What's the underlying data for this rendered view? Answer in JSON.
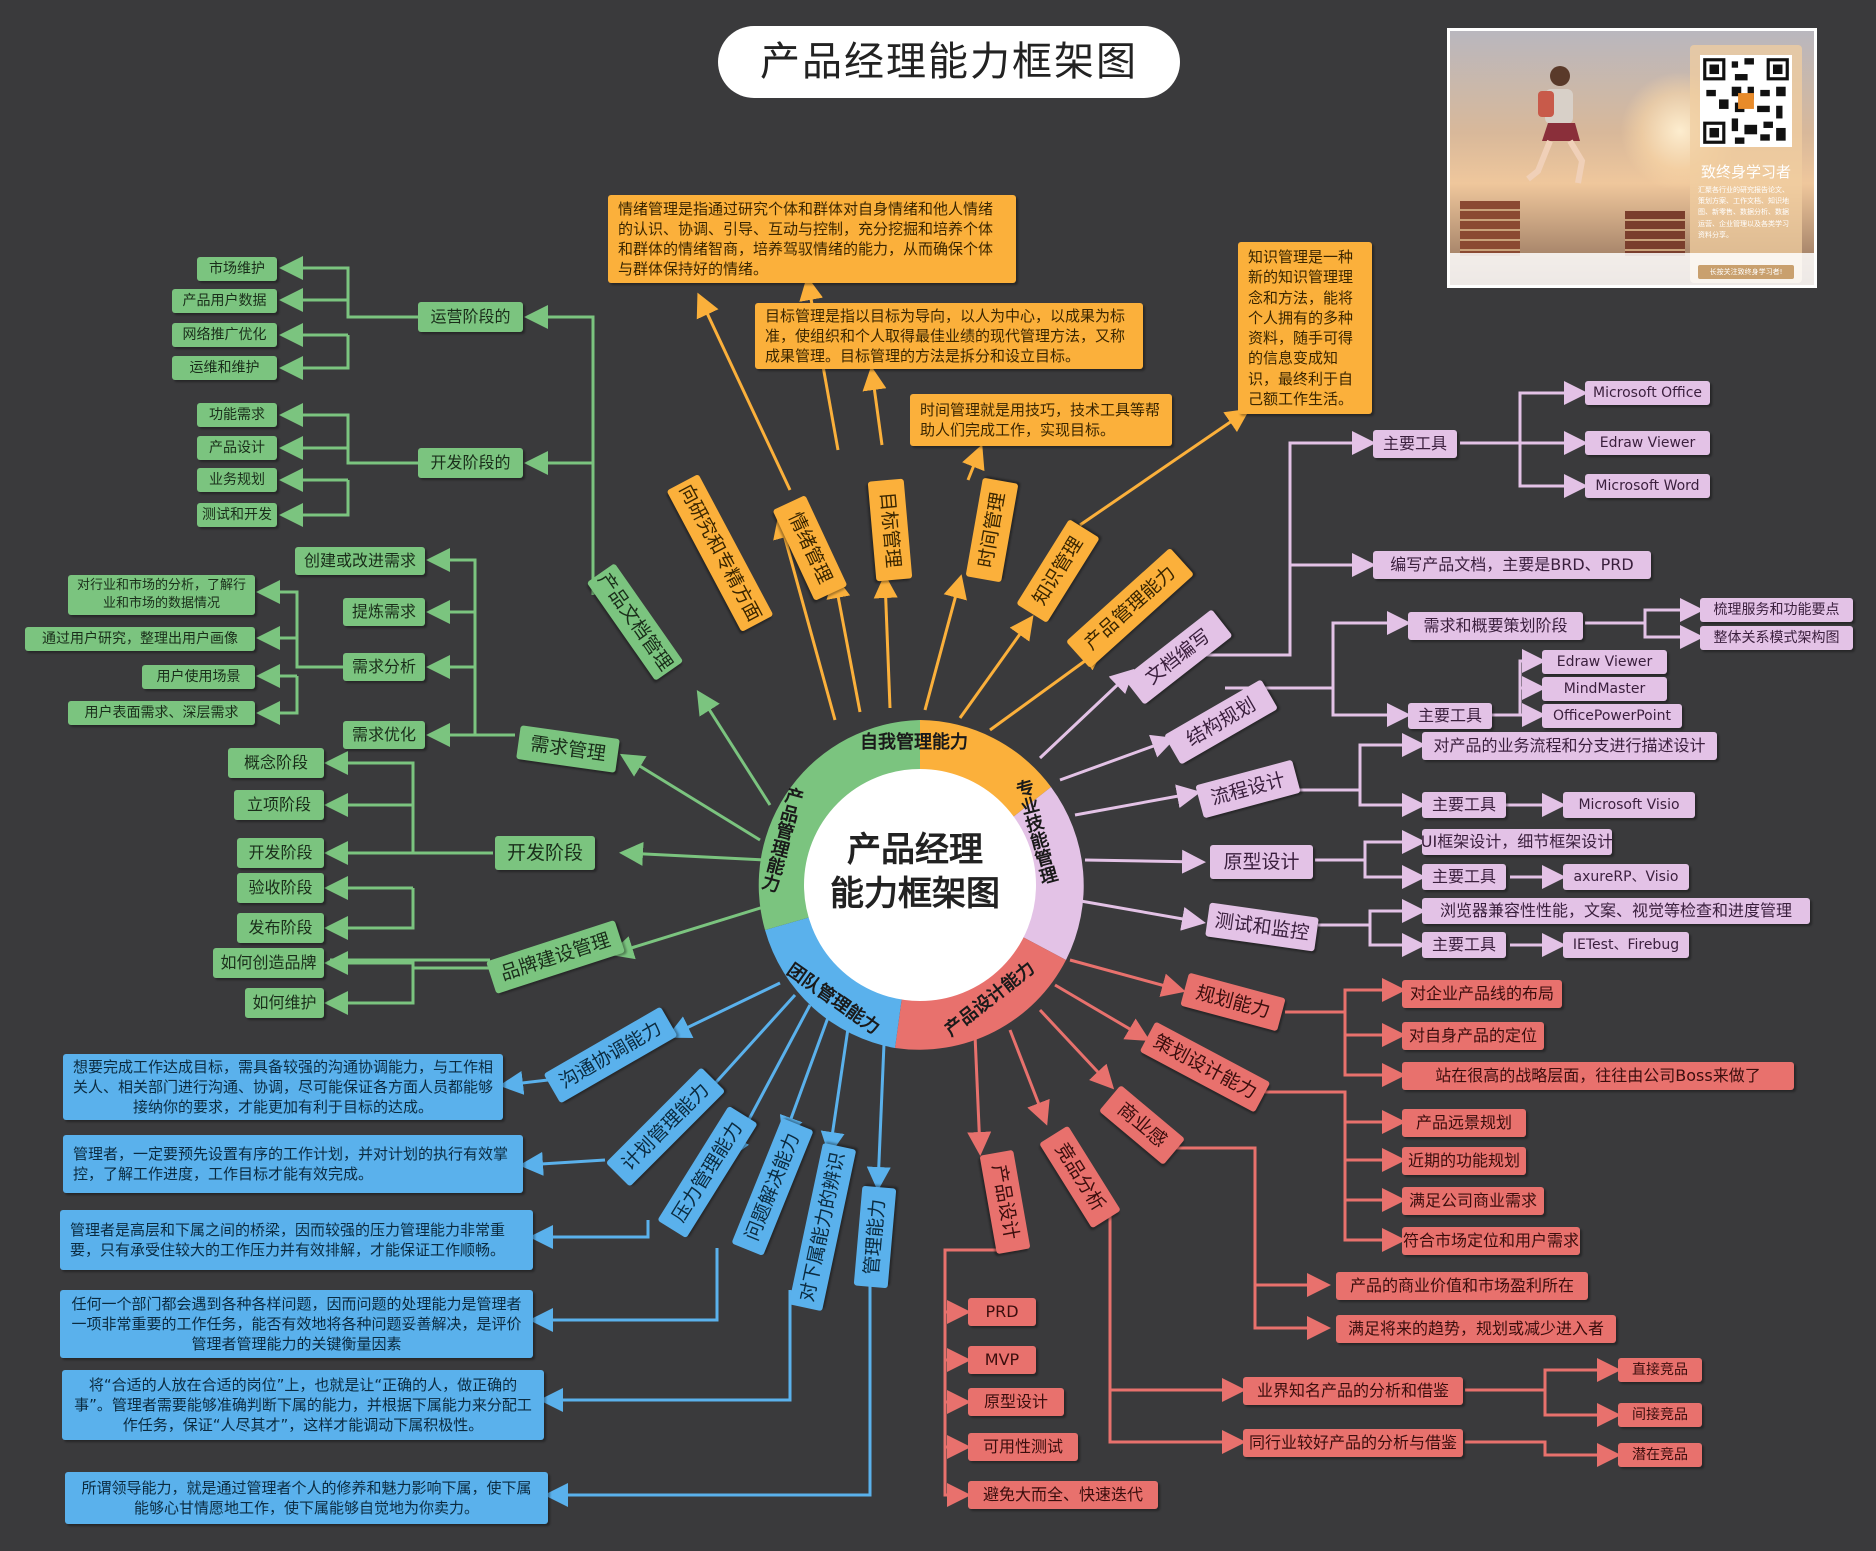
{
  "title": "产品经理能力框架图",
  "center": {
    "line1": "产品经理",
    "line2": "能力框架图"
  },
  "colors": {
    "background": "#3a3a3c",
    "green": "#7bc47f",
    "orange": "#fbb03b",
    "purple": "#e3c2e6",
    "red": "#e8716d",
    "blue": "#5ab1ec"
  },
  "ad": {
    "title": "致终身学习者",
    "text": "汇聚各行业的研究报告论文、策划方案、工作文档、知识地图、新零售、数据分析、数据运营、企业管理以及各类学习资料分享。",
    "footer": "长按关注致终身学习者!"
  },
  "segments": {
    "self": "自我管理能力",
    "pro": "专业技能管理",
    "design": "产品设计能力",
    "team": "团队管理能力",
    "manage": "产品管理能力"
  },
  "green": {
    "doc_mgmt": "产品文档管理",
    "ops_stage": "运营阶段的",
    "ops_items": [
      "市场维护",
      "产品用户数据",
      "网络推广优化",
      "运维和维护"
    ],
    "dev_stage_doc": "开发阶段的",
    "dev_items": [
      "功能需求",
      "产品设计",
      "业务规划",
      "测试和开发"
    ],
    "req_mgmt": "需求管理",
    "req_children": [
      "创建或改进需求",
      "提炼需求",
      "需求分析",
      "需求优化"
    ],
    "req_analysis_items": [
      "对行业和市场的分析，了解行业和市场的数据情况",
      "通过用户研究，整理出用户画像",
      "用户使用场景",
      "用户表面需求、深层需求"
    ],
    "dev_stage": "开发阶段",
    "dev_stage_items": [
      "概念阶段",
      "立项阶段",
      "开发阶段",
      "验收阶段",
      "发布阶段"
    ],
    "brand": "品牌建设管理",
    "brand_items": [
      "如何创造品牌",
      "如何维护"
    ]
  },
  "orange": {
    "research": "向研究和专精方面",
    "emotion": "情绪管理",
    "goal": "目标管理",
    "time": "时间管理",
    "knowledge": "知识管理",
    "product_mgmt": "产品管理能力",
    "emotion_desc": "情绪管理是指通过研究个体和群体对自身情绪和他人情绪的认识、协调、引导、互动与控制，充分挖掘和培养个体和群体的情绪智商，培养驾驭情绪的能力，从而确保个体与群体保持好的情绪。",
    "goal_desc": "目标管理是指以目标为导向，以人为中心，以成果为标准，使组织和个人取得最佳业绩的现代管理方法，又称成果管理。目标管理的方法是拆分和设立目标。",
    "time_desc": "时间管理就是用技巧，技术工具等帮助人们完成工作，实现目标。",
    "knowledge_desc": "知识管理是一种新的知识管理理念和方法，能将个人拥有的多种资料，随手可得的信息变成知识，最终利于自己额工作生活。"
  },
  "purple": {
    "doc_write": "文档编写",
    "main_tools": "主要工具",
    "doc_tools": [
      "Microsoft Office",
      "Edraw Viewer",
      "Microsoft Word"
    ],
    "doc_write_desc": "编写产品文档，主要是BRD、PRD",
    "structure": "结构规划",
    "req_plan": "需求和概要策划阶段",
    "req_plan_items": [
      "梳理服务和功能要点",
      "整体关系模式架构图"
    ],
    "structure_tools": [
      "Edraw Viewer",
      "MindMaster",
      "OfficePowerPoint"
    ],
    "flow": "流程设计",
    "flow_desc": "对产品的业务流程和分支进行描述设计",
    "flow_tool": "Microsoft Visio",
    "proto": "原型设计",
    "proto_desc": "UI框架设计，细节框架设计",
    "proto_tool": "axureRP、Visio",
    "test": "测试和监控",
    "test_desc": "浏览器兼容性性能，文案、视觉等检查和进度管理",
    "test_tool": "IETest、Firebug"
  },
  "red": {
    "plan": "规划能力",
    "plan_items": [
      "对企业产品线的布局",
      "对自身产品的定位",
      "站在很高的战略层面，往往由公司Boss来做了"
    ],
    "strategy": "策划设计能力",
    "strategy_items": [
      "产品远景规划",
      "近期的功能规划",
      "满足公司商业需求",
      "符合市场定位和用户需求"
    ],
    "business": "商业感",
    "business_items": [
      "产品的商业价值和市场盈利所在",
      "满足将来的趋势，规划或减少进入者"
    ],
    "competitor": "竞品分析",
    "competitor_items": [
      "业界知名产品的分析和借鉴",
      "同行业较好产品的分析与借鉴"
    ],
    "competitor_types": [
      "直接竞品",
      "间接竞品",
      "潜在竞品"
    ],
    "design": "产品设计",
    "design_items": [
      "PRD",
      "MVP",
      "原型设计",
      "可用性测试",
      "避免大而全、快速迭代"
    ]
  },
  "blue": {
    "communication": "沟通协调能力",
    "plan": "计划管理能力",
    "pressure": "压力管理能力",
    "problem": "问题解决能力",
    "identify": "对下属能力的辨识",
    "manage": "管理能力",
    "communication_desc": "想要完成工作达成目标，需具备较强的沟通协调能力，与工作相关人、相关部门进行沟通、协调，尽可能保证各方面人员都能够接纳你的要求，才能更加有利于目标的达成。",
    "plan_desc": "管理者，一定要预先设置有序的工作计划，并对计划的执行有效掌控，了解工作进度，工作目标才能有效完成。",
    "pressure_desc": "管理者是高层和下属之间的桥梁，因而较强的压力管理能力非常重要，只有承受住较大的工作压力并有效排解，才能保证工作顺畅。",
    "problem_desc": "任何一个部门都会遇到各种各样问题，因而问题的处理能力是管理者一项非常重要的工作任务，能否有效地将各种问题妥善解决，是评价管理者管理能力的关键衡量因素",
    "identify_desc": "将“合适的人放在合适的岗位”上，也就是让“正确的人，做正确的事”。管理者需要能够准确判断下属的能力，并根据下属能力来分配工作任务，保证“人尽其才”，这样才能调动下属积极性。",
    "manage_desc": "所谓领导能力，就是通过管理者个人的修养和魅力影响下属，使下属能够心甘情愿地工作，使下属能够自觉地为你卖力。"
  }
}
